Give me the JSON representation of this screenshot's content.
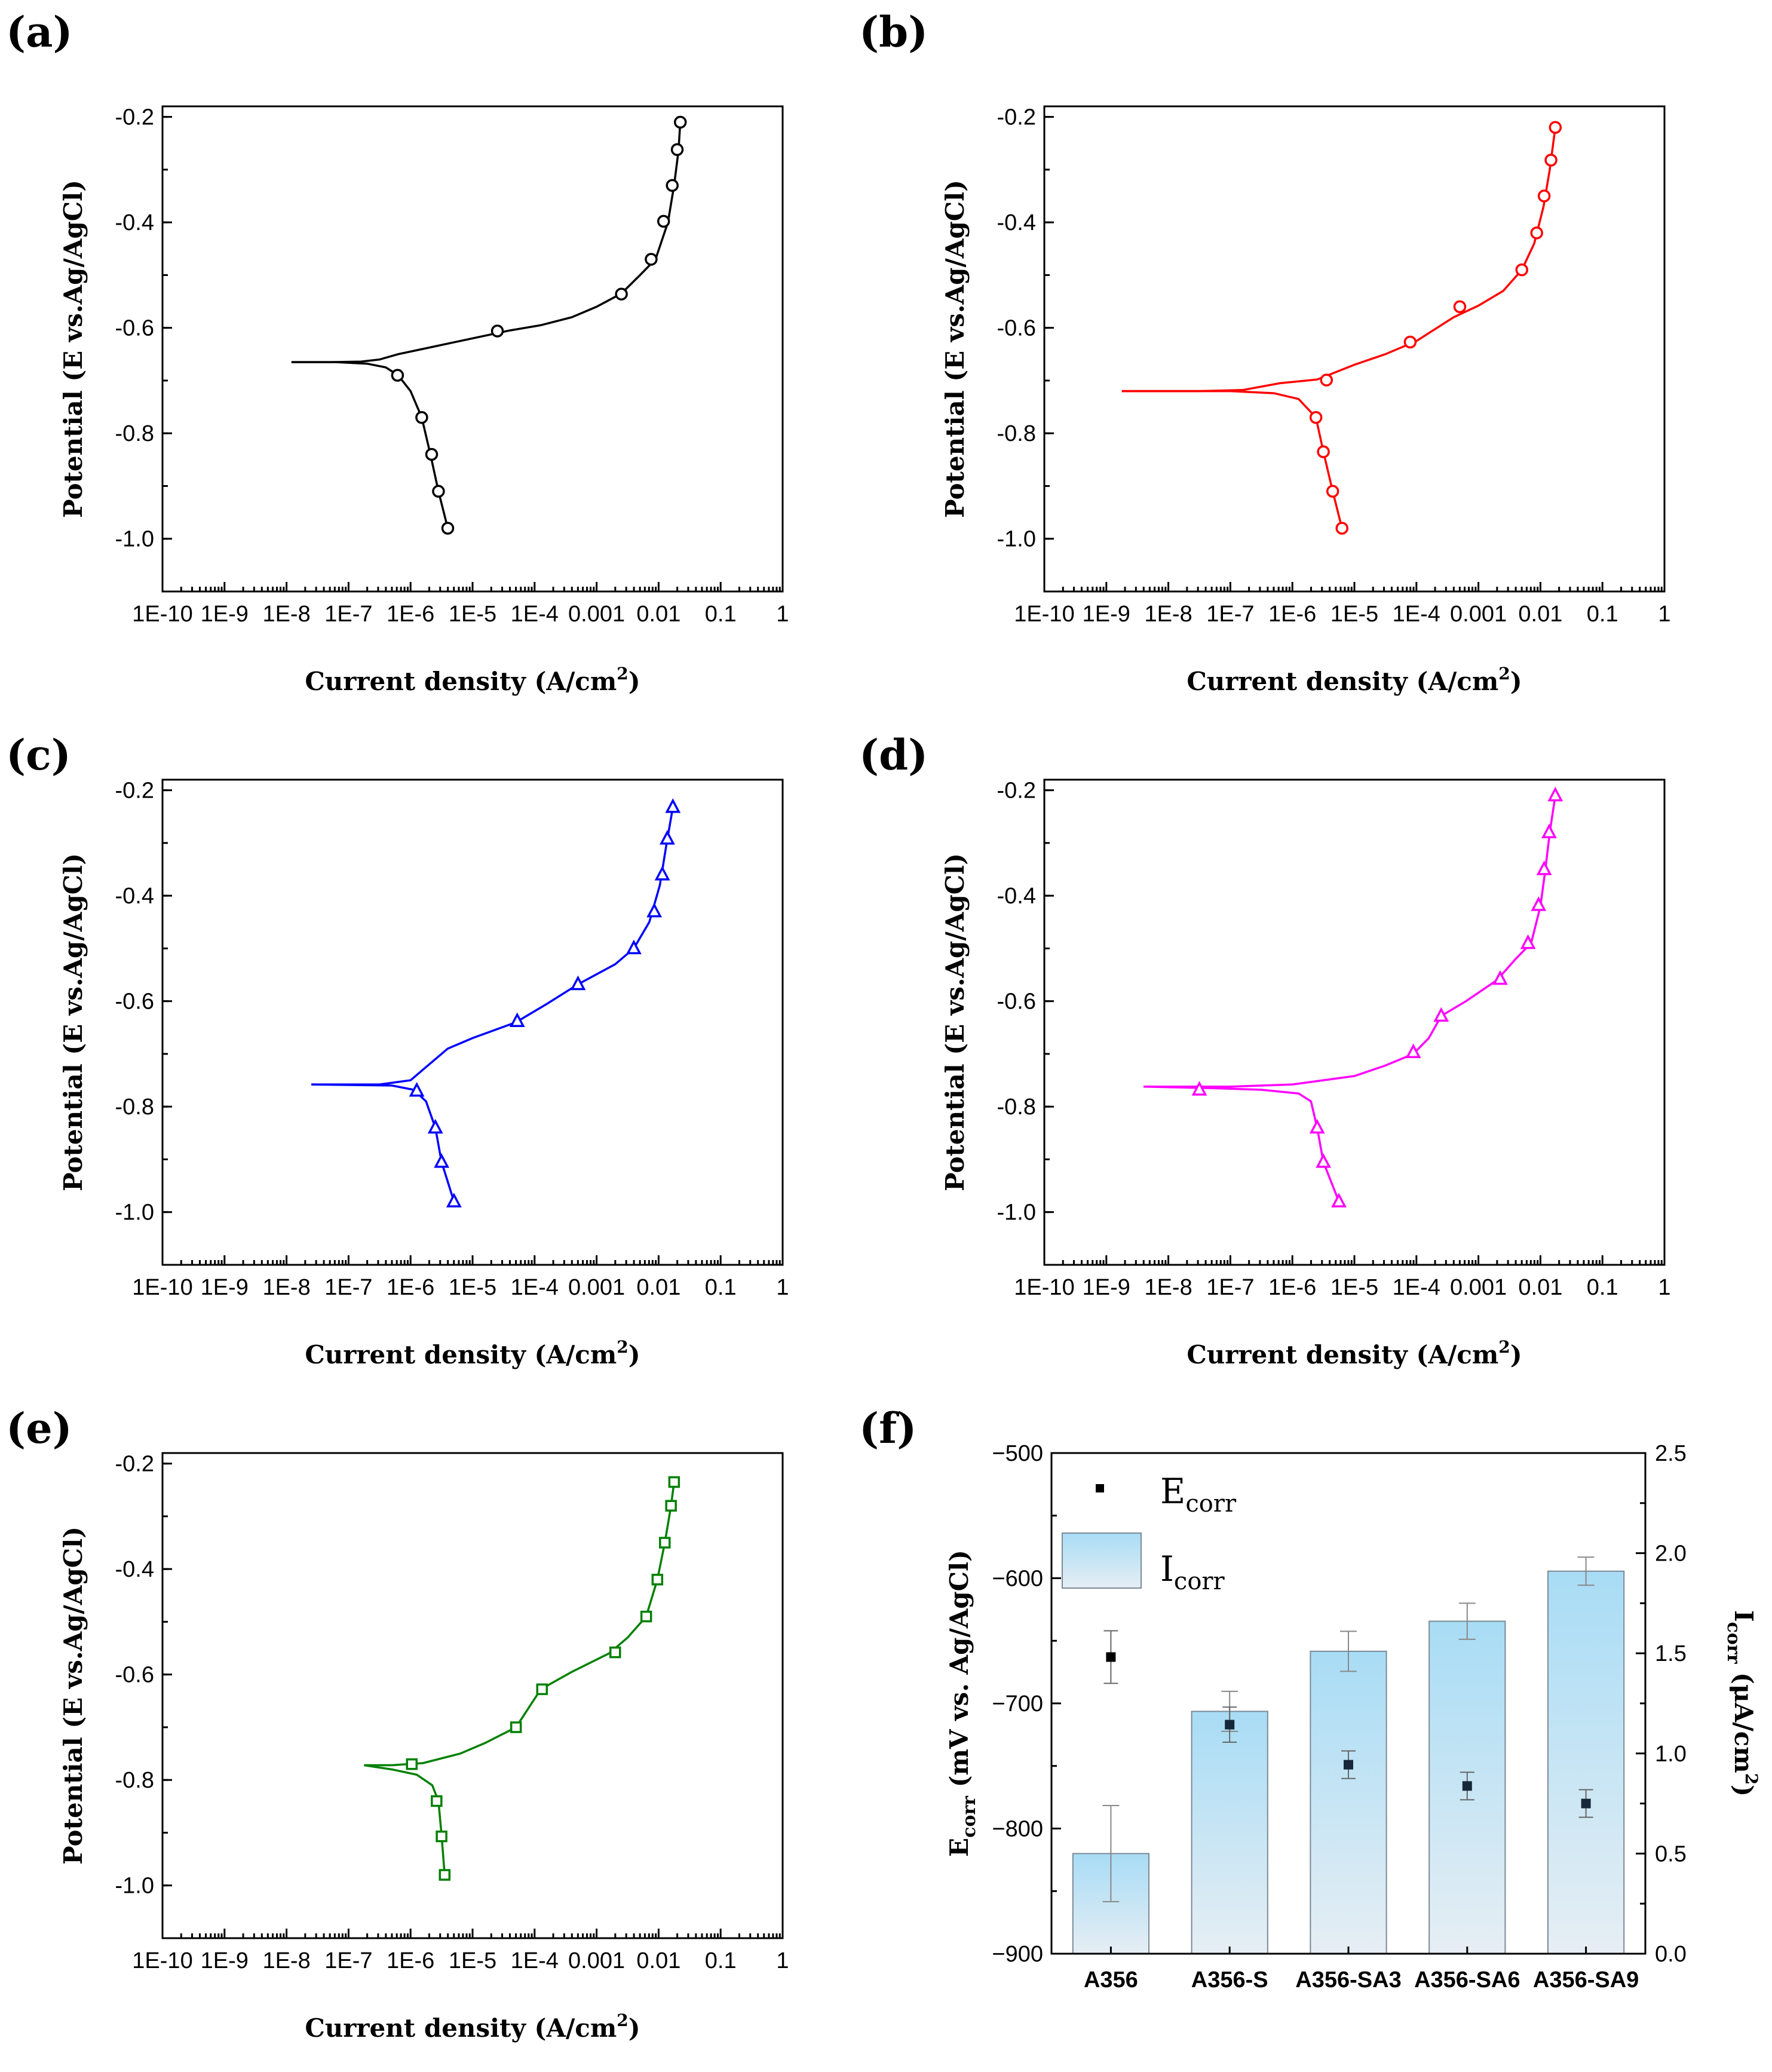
{
  "figure": {
    "panels": [
      "(a)",
      "(b)",
      "(c)",
      "(d)",
      "(e)",
      "(f)"
    ]
  },
  "chart_data": [
    {
      "panel": "(a)",
      "type": "line",
      "color": "#000000",
      "marker": "circle",
      "xlabel": "Current density (A/cm",
      "xlabel_sup": "2",
      "xlabel_end": ")",
      "ylabel": "Potential (E vs.Ag/AgCl)",
      "xscale": "log",
      "xlim": [
        1e-10,
        1
      ],
      "ylim": [
        -1.1,
        -0.18
      ],
      "xticks": [
        -10,
        -9,
        -8,
        -7,
        -6,
        -5,
        -4,
        -3,
        -2,
        -1,
        0
      ],
      "xtick_labels": [
        "1E-10",
        "1E-9",
        "1E-8",
        "1E-7",
        "1E-6",
        "1E-5",
        "1E-4",
        "0.001",
        "0.01",
        "0.1",
        "1"
      ],
      "yticks": [
        "-0.2",
        "-0.4",
        "-0.6",
        "-0.8",
        "-1.0"
      ],
      "series": [
        {
          "points": [
            [
              -7.92,
              -0.665
            ],
            [
              -7.3,
              -0.665
            ],
            [
              -6.8,
              -0.664
            ],
            [
              -6.5,
              -0.66
            ],
            [
              -6.2,
              -0.65
            ],
            [
              -5.8,
              -0.64
            ],
            [
              -5.0,
              -0.62
            ],
            [
              -4.4,
              -0.605
            ],
            [
              -3.9,
              -0.595
            ],
            [
              -3.4,
              -0.58
            ],
            [
              -3.0,
              -0.56
            ],
            [
              -2.6,
              -0.535
            ],
            [
              -2.3,
              -0.5
            ],
            [
              -2.05,
              -0.47
            ],
            [
              -1.85,
              -0.4
            ],
            [
              -1.75,
              -0.33
            ],
            [
              -1.68,
              -0.265
            ],
            [
              -1.65,
              -0.21
            ]
          ],
          "cathodic": [
            [
              -7.92,
              -0.665
            ],
            [
              -7.2,
              -0.665
            ],
            [
              -6.7,
              -0.668
            ],
            [
              -6.4,
              -0.675
            ],
            [
              -6.2,
              -0.69
            ],
            [
              -6.0,
              -0.72
            ],
            [
              -5.82,
              -0.77
            ],
            [
              -5.68,
              -0.84
            ],
            [
              -5.55,
              -0.91
            ],
            [
              -5.4,
              -0.98
            ]
          ]
        }
      ],
      "markers": [
        [
          -4.6,
          -0.606
        ],
        [
          -2.6,
          -0.536
        ],
        [
          -2.12,
          -0.47
        ],
        [
          -1.92,
          -0.398
        ],
        [
          -1.78,
          -0.33
        ],
        [
          -1.7,
          -0.262
        ],
        [
          -1.65,
          -0.21
        ],
        [
          -6.21,
          -0.69
        ],
        [
          -5.82,
          -0.77
        ],
        [
          -5.66,
          -0.84
        ],
        [
          -5.55,
          -0.91
        ],
        [
          -5.4,
          -0.98
        ]
      ]
    },
    {
      "panel": "(b)",
      "type": "line",
      "color": "#ff0000",
      "marker": "circle",
      "xlabel": "Current density (A/cm",
      "xlabel_sup": "2",
      "xlabel_end": ")",
      "ylabel": "Potential (E vs.Ag/AgCl)",
      "xscale": "log",
      "xlim": [
        1e-10,
        1
      ],
      "ylim": [
        -1.1,
        -0.18
      ],
      "xticks": [
        -10,
        -9,
        -8,
        -7,
        -6,
        -5,
        -4,
        -3,
        -2,
        -1,
        0
      ],
      "xtick_labels": [
        "1E-10",
        "1E-9",
        "1E-8",
        "1E-7",
        "1E-6",
        "1E-5",
        "1E-4",
        "0.001",
        "0.01",
        "0.1",
        "1"
      ],
      "yticks": [
        "-0.2",
        "-0.4",
        "-0.6",
        "-0.8",
        "-1.0"
      ],
      "series": [
        {
          "points": [
            [
              -8.75,
              -0.72
            ],
            [
              -7.5,
              -0.72
            ],
            [
              -6.8,
              -0.718
            ],
            [
              -6.2,
              -0.705
            ],
            [
              -5.6,
              -0.698
            ],
            [
              -5.0,
              -0.67
            ],
            [
              -4.5,
              -0.65
            ],
            [
              -4.0,
              -0.625
            ],
            [
              -3.4,
              -0.58
            ],
            [
              -3.0,
              -0.558
            ],
            [
              -2.6,
              -0.53
            ],
            [
              -2.3,
              -0.49
            ],
            [
              -2.1,
              -0.44
            ],
            [
              -1.95,
              -0.37
            ],
            [
              -1.85,
              -0.3
            ],
            [
              -1.76,
              -0.22
            ]
          ],
          "cathodic": [
            [
              -8.75,
              -0.72
            ],
            [
              -7.0,
              -0.72
            ],
            [
              -6.3,
              -0.724
            ],
            [
              -5.9,
              -0.735
            ],
            [
              -5.62,
              -0.77
            ],
            [
              -5.5,
              -0.835
            ],
            [
              -5.35,
              -0.91
            ],
            [
              -5.2,
              -0.98
            ]
          ]
        }
      ],
      "markers": [
        [
          -5.45,
          -0.699
        ],
        [
          -4.1,
          -0.627
        ],
        [
          -3.3,
          -0.56
        ],
        [
          -2.3,
          -0.49
        ],
        [
          -2.06,
          -0.42
        ],
        [
          -1.94,
          -0.35
        ],
        [
          -1.83,
          -0.282
        ],
        [
          -1.76,
          -0.22
        ],
        [
          -5.62,
          -0.77
        ],
        [
          -5.5,
          -0.835
        ],
        [
          -5.35,
          -0.91
        ],
        [
          -5.2,
          -0.98
        ]
      ]
    },
    {
      "panel": "(c)",
      "type": "line",
      "color": "#0000ff",
      "marker": "triangle",
      "xlabel": "Current density (A/cm",
      "xlabel_sup": "2",
      "xlabel_end": ")",
      "ylabel": "Potential (E vs.Ag/AgCl)",
      "xscale": "log",
      "xlim": [
        1e-10,
        1
      ],
      "ylim": [
        -1.1,
        -0.18
      ],
      "xticks": [
        -10,
        -9,
        -8,
        -7,
        -6,
        -5,
        -4,
        -3,
        -2,
        -1,
        0
      ],
      "xtick_labels": [
        "1E-10",
        "1E-9",
        "1E-8",
        "1E-7",
        "1E-6",
        "1E-5",
        "1E-4",
        "0.001",
        "0.01",
        "0.1",
        "1"
      ],
      "yticks": [
        "-0.2",
        "-0.4",
        "-0.6",
        "-0.8",
        "-1.0"
      ],
      "series": [
        {
          "points": [
            [
              -7.6,
              -0.758
            ],
            [
              -6.5,
              -0.758
            ],
            [
              -6.0,
              -0.75
            ],
            [
              -5.7,
              -0.72
            ],
            [
              -5.4,
              -0.69
            ],
            [
              -5.0,
              -0.67
            ],
            [
              -4.3,
              -0.64
            ],
            [
              -3.8,
              -0.605
            ],
            [
              -3.3,
              -0.568
            ],
            [
              -2.7,
              -0.53
            ],
            [
              -2.4,
              -0.5
            ],
            [
              -2.15,
              -0.45
            ],
            [
              -1.98,
              -0.38
            ],
            [
              -1.87,
              -0.3
            ],
            [
              -1.77,
              -0.232
            ]
          ],
          "cathodic": [
            [
              -7.6,
              -0.758
            ],
            [
              -6.3,
              -0.76
            ],
            [
              -5.95,
              -0.768
            ],
            [
              -5.75,
              -0.79
            ],
            [
              -5.6,
              -0.84
            ],
            [
              -5.5,
              -0.905
            ],
            [
              -5.3,
              -0.98
            ]
          ]
        }
      ],
      "markers": [
        [
          -4.28,
          -0.638
        ],
        [
          -3.3,
          -0.568
        ],
        [
          -2.4,
          -0.5
        ],
        [
          -2.07,
          -0.43
        ],
        [
          -1.94,
          -0.36
        ],
        [
          -1.86,
          -0.292
        ],
        [
          -1.77,
          -0.232
        ],
        [
          -5.9,
          -0.77
        ],
        [
          -5.6,
          -0.84
        ],
        [
          -5.5,
          -0.905
        ],
        [
          -5.3,
          -0.98
        ]
      ]
    },
    {
      "panel": "(d)",
      "type": "line",
      "color": "#ff00ff",
      "marker": "triangle",
      "xlabel": "Current density (A/cm",
      "xlabel_sup": "2",
      "xlabel_end": ")",
      "ylabel": "Potential (E vs.Ag/AgCl)",
      "xscale": "log",
      "xlim": [
        1e-10,
        1
      ],
      "ylim": [
        -1.1,
        -0.18
      ],
      "xticks": [
        -10,
        -9,
        -8,
        -7,
        -6,
        -5,
        -4,
        -3,
        -2,
        -1,
        0
      ],
      "xtick_labels": [
        "1E-10",
        "1E-9",
        "1E-8",
        "1E-7",
        "1E-6",
        "1E-5",
        "1E-4",
        "0.001",
        "0.01",
        "0.1",
        "1"
      ],
      "yticks": [
        "-0.2",
        "-0.4",
        "-0.6",
        "-0.8",
        "-1.0"
      ],
      "series": [
        {
          "points": [
            [
              -8.4,
              -0.762
            ],
            [
              -7.0,
              -0.762
            ],
            [
              -6.0,
              -0.758
            ],
            [
              -5.0,
              -0.742
            ],
            [
              -4.5,
              -0.722
            ],
            [
              -4.05,
              -0.7
            ],
            [
              -3.8,
              -0.67
            ],
            [
              -3.6,
              -0.628
            ],
            [
              -3.2,
              -0.6
            ],
            [
              -2.7,
              -0.56
            ],
            [
              -2.4,
              -0.52
            ],
            [
              -2.15,
              -0.49
            ],
            [
              -2.0,
              -0.42
            ],
            [
              -1.92,
              -0.35
            ],
            [
              -1.85,
              -0.28
            ],
            [
              -1.76,
              -0.21
            ]
          ],
          "cathodic": [
            [
              -8.4,
              -0.762
            ],
            [
              -7.3,
              -0.765
            ],
            [
              -6.5,
              -0.768
            ],
            [
              -5.9,
              -0.775
            ],
            [
              -5.7,
              -0.79
            ],
            [
              -5.6,
              -0.84
            ],
            [
              -5.5,
              -0.905
            ],
            [
              -5.25,
              -0.98
            ]
          ]
        }
      ],
      "markers": [
        [
          -7.5,
          -0.768
        ],
        [
          -4.05,
          -0.697
        ],
        [
          -3.6,
          -0.628
        ],
        [
          -2.65,
          -0.558
        ],
        [
          -2.2,
          -0.49
        ],
        [
          -2.03,
          -0.418
        ],
        [
          -1.94,
          -0.35
        ],
        [
          -1.86,
          -0.28
        ],
        [
          -1.76,
          -0.21
        ],
        [
          -5.6,
          -0.84
        ],
        [
          -5.5,
          -0.905
        ],
        [
          -5.25,
          -0.98
        ]
      ]
    },
    {
      "panel": "(e)",
      "type": "line",
      "color": "#008000",
      "marker": "square",
      "xlabel": "Current density (A/cm",
      "xlabel_sup": "2",
      "xlabel_end": ")",
      "ylabel": "Potential (E vs.Ag/AgCl)",
      "xscale": "log",
      "xlim": [
        1e-10,
        1
      ],
      "ylim": [
        -1.1,
        -0.18
      ],
      "xticks": [
        -10,
        -9,
        -8,
        -7,
        -6,
        -5,
        -4,
        -3,
        -2,
        -1,
        0
      ],
      "xtick_labels": [
        "1E-10",
        "1E-9",
        "1E-8",
        "1E-7",
        "1E-6",
        "1E-5",
        "1E-4",
        "0.001",
        "0.01",
        "0.1",
        "1"
      ],
      "yticks": [
        "-0.2",
        "-0.4",
        "-0.6",
        "-0.8",
        "-1.0"
      ],
      "series": [
        {
          "points": [
            [
              -6.75,
              -0.772
            ],
            [
              -6.3,
              -0.772
            ],
            [
              -5.8,
              -0.768
            ],
            [
              -5.2,
              -0.75
            ],
            [
              -4.8,
              -0.73
            ],
            [
              -4.3,
              -0.7
            ],
            [
              -3.9,
              -0.628
            ],
            [
              -3.4,
              -0.595
            ],
            [
              -2.8,
              -0.56
            ],
            [
              -2.5,
              -0.53
            ],
            [
              -2.2,
              -0.49
            ],
            [
              -2.02,
              -0.42
            ],
            [
              -1.9,
              -0.35
            ],
            [
              -1.8,
              -0.28
            ],
            [
              -1.75,
              -0.235
            ]
          ],
          "cathodic": [
            [
              -6.75,
              -0.772
            ],
            [
              -6.3,
              -0.78
            ],
            [
              -5.9,
              -0.79
            ],
            [
              -5.65,
              -0.81
            ],
            [
              -5.55,
              -0.84
            ],
            [
              -5.5,
              -0.905
            ],
            [
              -5.45,
              -0.98
            ]
          ]
        }
      ],
      "markers": [
        [
          -5.98,
          -0.77
        ],
        [
          -4.3,
          -0.7
        ],
        [
          -3.88,
          -0.628
        ],
        [
          -2.7,
          -0.558
        ],
        [
          -2.2,
          -0.49
        ],
        [
          -2.02,
          -0.42
        ],
        [
          -1.9,
          -0.35
        ],
        [
          -1.8,
          -0.28
        ],
        [
          -1.75,
          -0.235
        ],
        [
          -5.58,
          -0.84
        ],
        [
          -5.5,
          -0.907
        ],
        [
          -5.45,
          -0.98
        ]
      ]
    },
    {
      "panel": "(f)",
      "type": "bar",
      "categories": [
        "A356",
        "A356-S",
        "A356-SA3",
        "A356-SA6",
        "A356-SA9"
      ],
      "series": [
        {
          "name": "I",
          "name_sub": "corr",
          "axis": "right",
          "values": [
            0.5,
            1.21,
            1.51,
            1.66,
            1.91
          ],
          "errors": [
            0.24,
            0.1,
            0.1,
            0.09,
            0.07
          ]
        },
        {
          "name": "E",
          "name_sub": "corr",
          "axis": "left",
          "type": "scatter",
          "values": [
            -663,
            -717,
            -749,
            -766,
            -780
          ],
          "errors": [
            21,
            14,
            11,
            11,
            11
          ]
        }
      ],
      "ylabel_left": "E",
      "ylabel_left_sub": "corr",
      "ylabel_left_rest": " (mV vs. Ag/AgCl)",
      "ylabel_right": "I",
      "ylabel_right_sub": "corr",
      "ylabel_right_rest": " (μA/cm",
      "ylabel_right_sup": "2",
      "ylabel_right_end": ")",
      "ylim_left": [
        -900,
        -500
      ],
      "ylim_right": [
        0.0,
        2.5
      ],
      "yticks_left": [
        "-900",
        "-800",
        "-700",
        "-600",
        "-500"
      ],
      "yticks_right": [
        "0.0",
        "0.5",
        "1.0",
        "1.5",
        "2.0",
        "2.5"
      ],
      "bar_color_top": "#a8dcf5",
      "bar_color_bottom": "#e6eef4",
      "marker_color": "#000000"
    }
  ]
}
